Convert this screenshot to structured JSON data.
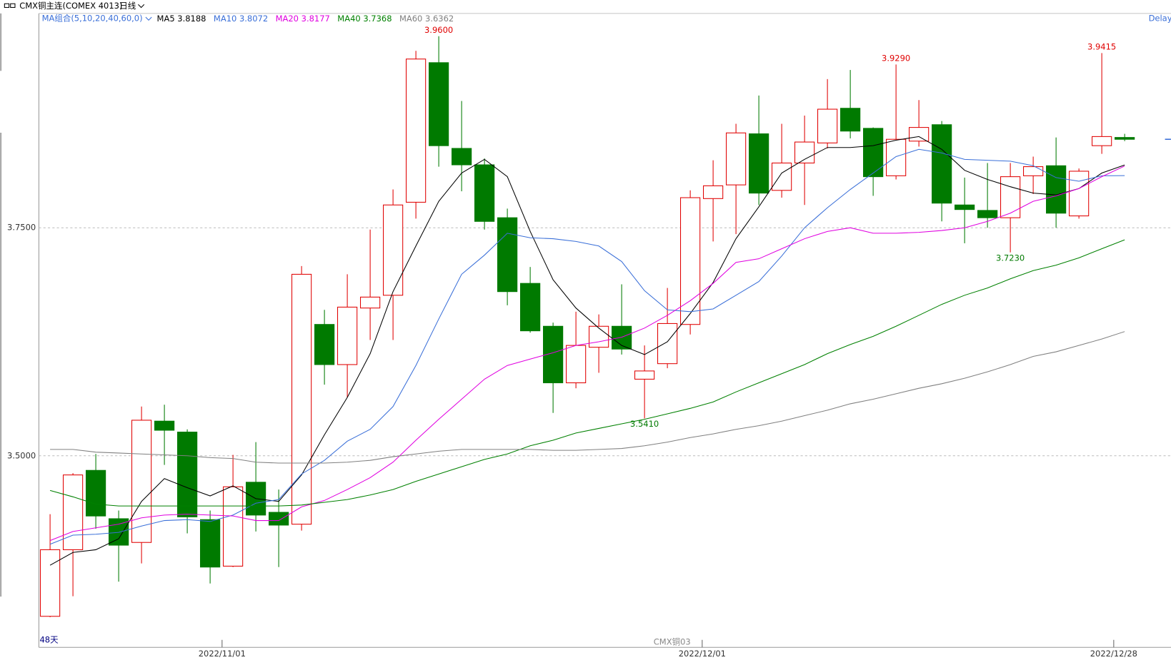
{
  "header": {
    "title": "CMX铜主连(COMEX 4013)",
    "period": "日线",
    "ma_group": "MA组合(5,10,20,40,60,0)",
    "delay": "Delay"
  },
  "chart_data": {
    "type": "candlestick",
    "categories": [
      null,
      null,
      null,
      null,
      null,
      null,
      null,
      "2022/11/01",
      null,
      null,
      null,
      null,
      null,
      null,
      null,
      null,
      null,
      null,
      null,
      null,
      null,
      null,
      null,
      null,
      null,
      null,
      null,
      null,
      "2022/12/01",
      null,
      null,
      null,
      null,
      null,
      null,
      null,
      null,
      null,
      null,
      null,
      null,
      null,
      null,
      null,
      null,
      null,
      "2022/12/28",
      null
    ],
    "open": [
      3.324,
      3.397,
      3.484,
      3.431,
      3.405,
      3.538,
      3.526,
      3.43,
      3.379,
      3.471,
      3.438,
      3.425,
      3.644,
      3.6,
      3.662,
      3.676,
      3.778,
      3.931,
      3.837,
      3.819,
      3.761,
      3.689,
      3.642,
      3.58,
      3.619,
      3.642,
      3.584,
      3.601,
      3.644,
      3.782,
      3.797,
      3.853,
      3.791,
      3.821,
      3.843,
      3.881,
      3.859,
      3.807,
      3.845,
      3.863,
      3.775,
      3.769,
      3.761,
      3.807,
      3.818,
      3.763,
      3.84,
      3.849
    ],
    "high": [
      3.436,
      3.481,
      3.502,
      3.44,
      3.554,
      3.556,
      3.529,
      3.44,
      3.501,
      3.515,
      3.463,
      3.708,
      3.66,
      3.699,
      3.748,
      3.792,
      3.944,
      3.96,
      3.889,
      3.826,
      3.771,
      3.707,
      3.646,
      3.658,
      3.655,
      3.688,
      3.621,
      3.684,
      3.791,
      3.824,
      3.864,
      3.895,
      3.864,
      3.873,
      3.913,
      3.923,
      3.86,
      3.929,
      3.89,
      3.867,
      3.805,
      3.821,
      3.821,
      3.828,
      3.849,
      3.815,
      3.9415,
      3.853
    ],
    "low": [
      3.323,
      3.346,
      3.42,
      3.362,
      3.382,
      3.49,
      3.415,
      3.36,
      3.378,
      3.417,
      3.378,
      3.418,
      3.578,
      3.564,
      3.627,
      3.627,
      3.76,
      3.817,
      3.79,
      3.748,
      3.665,
      3.635,
      3.547,
      3.574,
      3.591,
      3.611,
      3.541,
      3.596,
      3.633,
      3.735,
      3.743,
      3.775,
      3.783,
      3.775,
      3.837,
      3.848,
      3.785,
      3.803,
      3.839,
      3.757,
      3.733,
      3.75,
      3.723,
      3.787,
      3.75,
      3.76,
      3.831,
      3.845
    ],
    "close": [
      3.397,
      3.479,
      3.434,
      3.402,
      3.539,
      3.528,
      3.433,
      3.378,
      3.466,
      3.435,
      3.424,
      3.699,
      3.6,
      3.663,
      3.674,
      3.775,
      3.935,
      3.84,
      3.819,
      3.757,
      3.68,
      3.637,
      3.58,
      3.621,
      3.642,
      3.617,
      3.593,
      3.645,
      3.783,
      3.796,
      3.854,
      3.788,
      3.821,
      3.844,
      3.88,
      3.856,
      3.806,
      3.847,
      3.86,
      3.777,
      3.77,
      3.761,
      3.806,
      3.817,
      3.766,
      3.812,
      3.85,
      3.847
    ],
    "up_color": "#e00000",
    "down_color": "#007a00",
    "ylim": [
      3.29,
      3.985
    ],
    "yticks": [
      {
        "value": 3.75,
        "label": "3.7500"
      },
      {
        "value": 3.5,
        "label": "3.5000"
      }
    ],
    "grid": true,
    "series": [
      {
        "name": "MA5",
        "color": "#000000",
        "value_label": "3.8188",
        "values": [
          3.38,
          3.394,
          3.397,
          3.409,
          3.45,
          3.475,
          3.465,
          3.456,
          3.467,
          3.453,
          3.45,
          3.479,
          3.523,
          3.564,
          3.612,
          3.68,
          3.73,
          3.779,
          3.81,
          3.825,
          3.806,
          3.746,
          3.693,
          3.662,
          3.64,
          3.621,
          3.611,
          3.625,
          3.656,
          3.69,
          3.738,
          3.773,
          3.81,
          3.825,
          3.838,
          3.838,
          3.84,
          3.846,
          3.85,
          3.836,
          3.813,
          3.803,
          3.795,
          3.788,
          3.786,
          3.793,
          3.81,
          3.8188
        ]
      },
      {
        "name": "MA10",
        "color": "#3a6fd8",
        "value_label": "3.8072",
        "values": [
          3.403,
          3.413,
          3.414,
          3.416,
          3.423,
          3.429,
          3.43,
          3.428,
          3.435,
          3.448,
          3.452,
          3.48,
          3.495,
          3.516,
          3.529,
          3.554,
          3.599,
          3.65,
          3.699,
          3.72,
          3.744,
          3.739,
          3.738,
          3.735,
          3.73,
          3.713,
          3.681,
          3.66,
          3.658,
          3.661,
          3.676,
          3.691,
          3.719,
          3.75,
          3.772,
          3.792,
          3.81,
          3.828,
          3.836,
          3.832,
          3.825,
          3.824,
          3.823,
          3.818,
          3.805,
          3.801,
          3.807,
          3.8072
        ]
      },
      {
        "name": "MA20",
        "color": "#e000e0",
        "value_label": "3.8177",
        "values": [
          3.407,
          3.417,
          3.421,
          3.425,
          3.432,
          3.435,
          3.436,
          3.435,
          3.434,
          3.429,
          3.429,
          3.444,
          3.451,
          3.463,
          3.476,
          3.493,
          3.517,
          3.54,
          3.562,
          3.584,
          3.599,
          3.606,
          3.613,
          3.621,
          3.625,
          3.63,
          3.64,
          3.654,
          3.67,
          3.689,
          3.712,
          3.716,
          3.727,
          3.738,
          3.746,
          3.75,
          3.744,
          3.744,
          3.745,
          3.747,
          3.75,
          3.757,
          3.766,
          3.779,
          3.785,
          3.793,
          3.806,
          3.8177
        ]
      },
      {
        "name": "MA40",
        "color": "#008000",
        "value_label": "3.7368",
        "values": [
          3.462,
          3.455,
          3.447,
          3.445,
          3.445,
          3.445,
          3.445,
          3.445,
          3.445,
          3.445,
          3.445,
          3.446,
          3.449,
          3.452,
          3.457,
          3.463,
          3.472,
          3.48,
          3.488,
          3.496,
          3.502,
          3.511,
          3.517,
          3.525,
          3.53,
          3.535,
          3.54,
          3.546,
          3.552,
          3.559,
          3.57,
          3.58,
          3.59,
          3.6,
          3.612,
          3.622,
          3.631,
          3.642,
          3.654,
          3.666,
          3.676,
          3.684,
          3.694,
          3.703,
          3.709,
          3.717,
          3.727,
          3.7368
        ]
      },
      {
        "name": "MA60",
        "color": "#808080",
        "value_label": "3.6362",
        "values": [
          3.507,
          3.507,
          3.504,
          3.503,
          3.502,
          3.501,
          3.5,
          3.498,
          3.497,
          3.493,
          3.492,
          3.492,
          3.492,
          3.493,
          3.495,
          3.499,
          3.502,
          3.505,
          3.507,
          3.507,
          3.507,
          3.507,
          3.506,
          3.506,
          3.507,
          3.508,
          3.511,
          3.515,
          3.52,
          3.524,
          3.529,
          3.533,
          3.538,
          3.544,
          3.55,
          3.557,
          3.562,
          3.568,
          3.574,
          3.579,
          3.585,
          3.592,
          3.6,
          3.609,
          3.614,
          3.621,
          3.628,
          3.6362
        ]
      }
    ],
    "high_labels": [
      {
        "value": 3.96,
        "label": "3.9600"
      },
      {
        "value": 3.929,
        "label": "3.9290"
      },
      {
        "value": 3.9415,
        "label": "3.9415"
      }
    ],
    "low_labels": [
      {
        "value": 3.541,
        "label": "3.5410"
      },
      {
        "value": 3.723,
        "label": "3.7230"
      }
    ],
    "day_count": "48天",
    "contract": "CMX铜03"
  }
}
